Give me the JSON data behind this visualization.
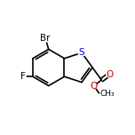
{
  "bg_color": "#ffffff",
  "bond_lw": 1.2,
  "figsize": [
    1.52,
    1.52
  ],
  "dpi": 100,
  "labels": {
    "S": {
      "text": "S",
      "color": "#0000cc",
      "fontsize": 7.5,
      "ha": "center",
      "va": "center"
    },
    "O1": {
      "text": "O",
      "color": "#cc0000",
      "fontsize": 7.5,
      "ha": "center",
      "va": "center"
    },
    "O2": {
      "text": "O",
      "color": "#cc0000",
      "fontsize": 7.5,
      "ha": "center",
      "va": "center"
    },
    "Br": {
      "text": "Br",
      "color": "#000000",
      "fontsize": 7.5,
      "ha": "center",
      "va": "center"
    },
    "F": {
      "text": "F",
      "color": "#000000",
      "fontsize": 7.5,
      "ha": "center",
      "va": "center"
    },
    "CH3": {
      "text": "CH₃",
      "color": "#000000",
      "fontsize": 6.5,
      "ha": "left",
      "va": "center"
    }
  }
}
